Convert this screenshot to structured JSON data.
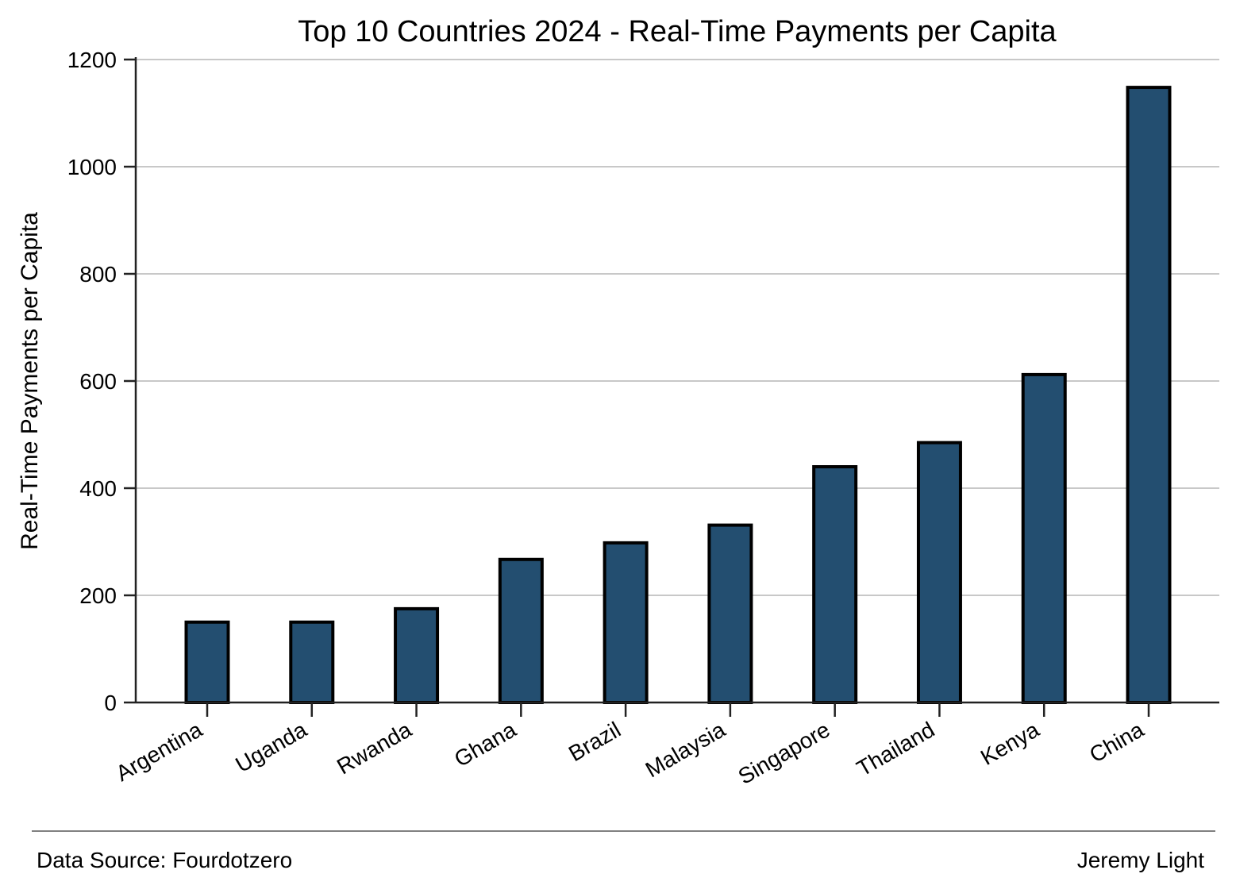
{
  "chart_data": {
    "type": "bar",
    "title": "Top 10 Countries 2024 - Real-Time Payments per Capita",
    "xlabel": "",
    "ylabel": "Real-Time Payments per Capita",
    "categories": [
      "Argentina",
      "Uganda",
      "Rwanda",
      "Ghana",
      "Brazil",
      "Malaysia",
      "Singapore",
      "Thailand",
      "Kenya",
      "China"
    ],
    "values": [
      150,
      150,
      175,
      267,
      298,
      331,
      440,
      485,
      612,
      1148
    ],
    "ylim": [
      0,
      1200
    ],
    "yticks": [
      0,
      200,
      400,
      600,
      800,
      1000,
      1200
    ],
    "grid": "horizontal",
    "bar_color": "#234e70",
    "bar_edge_color": "#000000"
  },
  "footer": {
    "source": "Data Source: Fourdotzero",
    "author": "Jeremy Light"
  }
}
